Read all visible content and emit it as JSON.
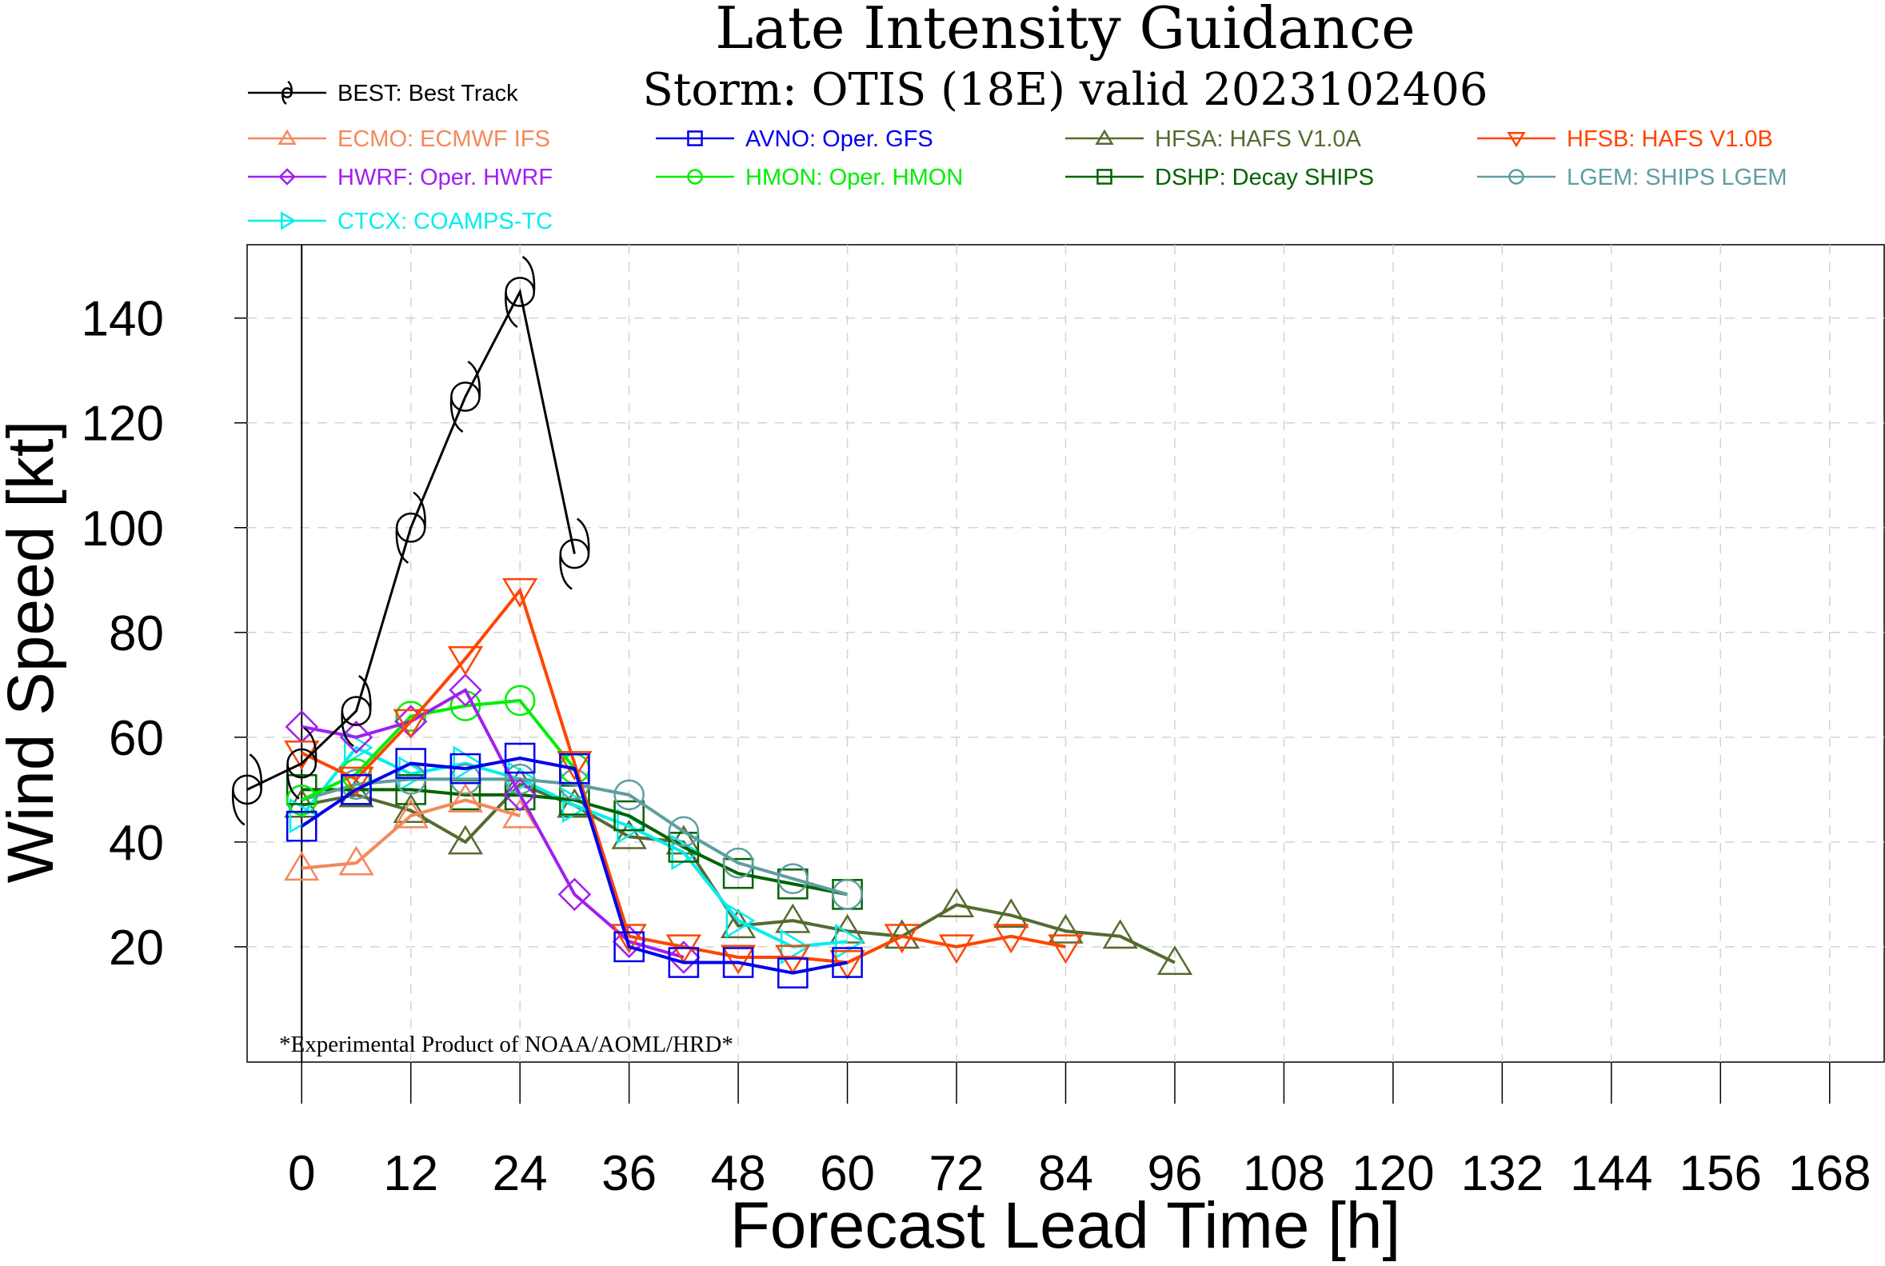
{
  "chart_data": {
    "type": "line",
    "title": "Late Intensity Guidance",
    "subtitle": "Storm: OTIS (18E) valid 2023102406",
    "xlabel": "Forecast Lead Time [h]",
    "ylabel": "Wind Speed [kt]",
    "footnote": "*Experimental Product of NOAA/AOML/HRD*",
    "xlim": [
      -6,
      174
    ],
    "ylim": [
      -2,
      154
    ],
    "x_ticks": [
      0,
      12,
      24,
      36,
      48,
      60,
      72,
      84,
      96,
      108,
      120,
      132,
      144,
      156,
      168
    ],
    "x_tick_labels": [
      "0",
      "12",
      "24",
      "36",
      "48",
      "60",
      "72",
      "84",
      "96",
      "108",
      "120",
      "132",
      "144",
      "156",
      "168"
    ],
    "y_ticks": [
      20,
      40,
      60,
      80,
      100,
      120,
      140
    ],
    "y_tick_labels": [
      "20",
      "40",
      "60",
      "80",
      "100",
      "120",
      "140"
    ],
    "grid": true,
    "legend_position": "top",
    "series": [
      {
        "name": "BEST: Best Track",
        "color": "#000000",
        "marker": "hurricane",
        "x": [
          -6,
          0,
          6,
          12,
          18,
          24,
          30
        ],
        "y": [
          50,
          55,
          65,
          100,
          125,
          145,
          95
        ]
      },
      {
        "name": "ECMO: ECMWF IFS",
        "color": "#f4885a",
        "marker": "triangle-up",
        "x": [
          0,
          6,
          12,
          18,
          24
        ],
        "y": [
          35,
          36,
          45,
          48,
          45
        ]
      },
      {
        "name": "AVNO: Oper. GFS",
        "color": "#0000ee",
        "marker": "square",
        "x": [
          0,
          6,
          12,
          18,
          24,
          30,
          36,
          42,
          48,
          54,
          60
        ],
        "y": [
          43,
          50,
          55,
          54,
          56,
          54,
          20,
          17,
          17,
          15,
          17
        ]
      },
      {
        "name": "HFSA: HAFS V1.0A",
        "color": "#556b2f",
        "marker": "triangle-up",
        "x": [
          0,
          6,
          12,
          18,
          24,
          30,
          36,
          42,
          48,
          54,
          60,
          66,
          72,
          78,
          84,
          90,
          96
        ],
        "y": [
          47,
          49,
          46,
          40,
          51,
          47,
          41,
          40,
          24,
          25,
          23,
          22,
          28,
          26,
          23,
          22,
          17
        ]
      },
      {
        "name": "HFSB: HAFS V1.0B",
        "color": "#ff4500",
        "marker": "triangle-down",
        "x": [
          0,
          6,
          12,
          18,
          24,
          30,
          36,
          42,
          48,
          54,
          60,
          66,
          72,
          78,
          84
        ],
        "y": [
          57,
          52,
          63,
          75,
          88,
          55,
          22,
          20,
          18,
          18,
          17,
          22,
          20,
          22,
          20
        ]
      },
      {
        "name": "HWRF: Oper. HWRF",
        "color": "#a020f0",
        "marker": "diamond",
        "x": [
          0,
          6,
          12,
          18,
          24,
          30,
          36,
          42
        ],
        "y": [
          62,
          60,
          63,
          69,
          49,
          30,
          21,
          18
        ]
      },
      {
        "name": "HMON: Oper. HMON",
        "color": "#00ee00",
        "marker": "circle",
        "x": [
          0,
          6,
          12,
          18,
          24,
          30
        ],
        "y": [
          48,
          53,
          64,
          66,
          67,
          54
        ]
      },
      {
        "name": "DSHP: Decay SHIPS",
        "color": "#006400",
        "marker": "square",
        "x": [
          0,
          6,
          12,
          18,
          24,
          30,
          36,
          42,
          48,
          54,
          60
        ],
        "y": [
          50,
          50,
          50,
          49,
          49,
          48,
          45,
          39,
          34,
          32,
          30
        ]
      },
      {
        "name": "LGEM: SHIPS LGEM",
        "color": "#5f9ea0",
        "marker": "circle",
        "x": [
          0,
          6,
          12,
          18,
          24,
          30,
          36,
          42,
          48,
          54,
          60
        ],
        "y": [
          48,
          51,
          52,
          52,
          52,
          51,
          49,
          42,
          36,
          33,
          30
        ]
      },
      {
        "name": "CTCX: COAMPS-TC",
        "color": "#00eeee",
        "marker": "triangle-right",
        "x": [
          0,
          6,
          12,
          18,
          24,
          30,
          36,
          42,
          48,
          54,
          60
        ],
        "y": [
          45,
          58,
          53,
          55,
          52,
          47,
          43,
          38,
          25,
          20,
          21
        ]
      }
    ]
  }
}
